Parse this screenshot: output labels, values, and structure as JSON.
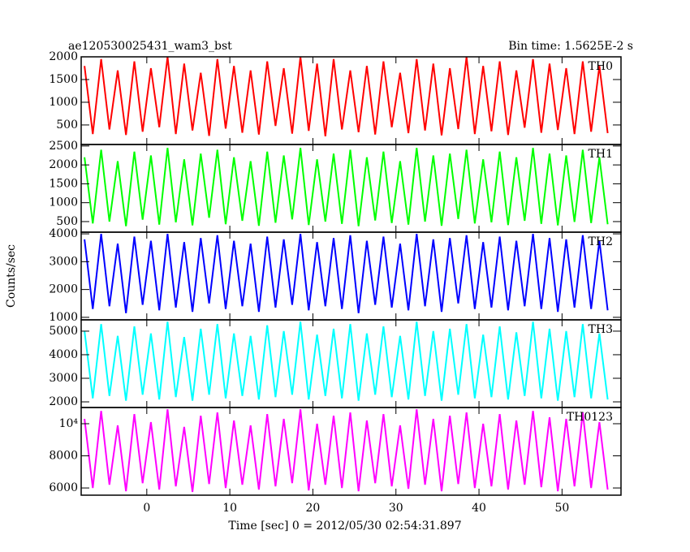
{
  "chart_data": {
    "type": "line",
    "title": "ae120530025431_wam3_bst",
    "subtitle": "Bin time: 1.5625E-2 s",
    "x_label": "Time [sec] 0 = 2012/05/30 02:54:31.897",
    "y_label": "Counts/sec",
    "xlim": [
      -7.9,
      57.1
    ],
    "xticks": [
      0,
      10,
      20,
      30,
      40,
      50
    ],
    "x": [
      -7.5,
      -6.5,
      -5.5,
      -4.5,
      -3.5,
      -2.5,
      -1.5,
      -0.5,
      0.5,
      1.5,
      2.5,
      3.5,
      4.5,
      5.5,
      6.5,
      7.5,
      8.5,
      9.5,
      10.5,
      11.5,
      12.5,
      13.5,
      14.5,
      15.5,
      16.5,
      17.5,
      18.5,
      19.5,
      20.5,
      21.5,
      22.5,
      23.5,
      24.5,
      25.5,
      26.5,
      27.5,
      28.5,
      29.5,
      30.5,
      31.5,
      32.5,
      33.5,
      34.5,
      35.5,
      36.5,
      37.5,
      38.5,
      39.5,
      40.5,
      41.5,
      42.5,
      43.5,
      44.5,
      45.5,
      46.5,
      47.5,
      48.5,
      49.5,
      50.5,
      51.5,
      52.5,
      53.5,
      54.5,
      55.5
    ],
    "series": [
      {
        "name": "TH0",
        "color": "#ff0000",
        "ylim": [
          70,
          2000
        ],
        "yticks": [
          500,
          1000,
          1500,
          2000
        ],
        "values": [
          1800,
          300,
          1950,
          400,
          1700,
          280,
          1900,
          350,
          1750,
          450,
          2000,
          300,
          1850,
          380,
          1650,
          260,
          1950,
          420,
          1800,
          330,
          1700,
          290,
          1900,
          480,
          1750,
          310,
          2000,
          370,
          1850,
          250,
          1950,
          400,
          1700,
          340,
          1800,
          290,
          1900,
          450,
          1650,
          320,
          1950,
          380,
          1850,
          270,
          1750,
          410,
          2000,
          300,
          1800,
          360,
          1900,
          280,
          1700,
          440,
          1950,
          330,
          1850,
          390,
          1750,
          300,
          1900,
          350,
          1800,
          320
        ]
      },
      {
        "name": "TH1",
        "color": "#00ff00",
        "ylim": [
          220,
          2540
        ],
        "yticks": [
          500,
          1000,
          1500,
          2000,
          2500
        ],
        "values": [
          2200,
          450,
          2400,
          500,
          2100,
          380,
          2350,
          550,
          2250,
          420,
          2450,
          480,
          2150,
          400,
          2300,
          600,
          2400,
          430,
          2200,
          520,
          2100,
          390,
          2350,
          470,
          2250,
          560,
          2450,
          410,
          2150,
          500,
          2300,
          440,
          2400,
          380,
          2200,
          530,
          2350,
          460,
          2100,
          420,
          2450,
          500,
          2250,
          390,
          2300,
          570,
          2400,
          450,
          2150,
          480,
          2350,
          410,
          2200,
          520,
          2450,
          440,
          2300,
          400,
          2250,
          490,
          2400,
          460,
          2200,
          430
        ]
      },
      {
        "name": "TH2",
        "color": "#0000ff",
        "ylim": [
          910,
          4060
        ],
        "yticks": [
          1000,
          2000,
          3000,
          4000
        ],
        "values": [
          3800,
          1300,
          4000,
          1400,
          3650,
          1150,
          3900,
          1450,
          3750,
          1250,
          4000,
          1350,
          3700,
          1200,
          3850,
          1500,
          3950,
          1300,
          3750,
          1400,
          3650,
          1200,
          3900,
          1350,
          3800,
          1450,
          4000,
          1250,
          3700,
          1400,
          3850,
          1300,
          3950,
          1150,
          3750,
          1450,
          3900,
          1350,
          3650,
          1250,
          4000,
          1400,
          3800,
          1200,
          3850,
          1500,
          3950,
          1300,
          3700,
          1350,
          3900,
          1250,
          3750,
          1400,
          4000,
          1300,
          3850,
          1200,
          3800,
          1350,
          3950,
          1300,
          3750,
          1250
        ]
      },
      {
        "name": "TH3",
        "color": "#00ffff",
        "ylim": [
          1760,
          5480
        ],
        "yticks": [
          2000,
          3000,
          4000,
          5000
        ],
        "values": [
          5000,
          2150,
          5300,
          2250,
          4800,
          2050,
          5200,
          2300,
          4900,
          2100,
          5400,
          2200,
          4750,
          2050,
          5100,
          2300,
          5300,
          2150,
          4900,
          2250,
          4800,
          2100,
          5250,
          2200,
          5000,
          2300,
          5400,
          2100,
          4850,
          2250,
          5100,
          2150,
          5300,
          2050,
          4900,
          2300,
          5200,
          2200,
          4800,
          2100,
          5400,
          2250,
          5000,
          2050,
          5100,
          2300,
          5300,
          2150,
          4850,
          2200,
          5200,
          2100,
          4950,
          2250,
          5400,
          2150,
          5100,
          2050,
          5000,
          2200,
          5300,
          2150,
          4900,
          2100
        ]
      },
      {
        "name": "TH0123",
        "color": "#ff00ff",
        "ylim": [
          5550,
          11010
        ],
        "yticks": [
          6000,
          8000,
          {
            "value": 10000,
            "label": "10⁴"
          }
        ],
        "values": [
          10300,
          6000,
          10800,
          6200,
          9900,
          5800,
          10600,
          6300,
          10100,
          5900,
          10900,
          6100,
          9800,
          5750,
          10500,
          6250,
          10700,
          6000,
          10200,
          6200,
          9900,
          5900,
          10600,
          6100,
          10300,
          6300,
          10900,
          5850,
          10000,
          6200,
          10500,
          6000,
          10700,
          5800,
          10200,
          6300,
          10600,
          6100,
          9900,
          5950,
          10900,
          6200,
          10300,
          5800,
          10500,
          6250,
          10700,
          6000,
          10000,
          6100,
          10600,
          5900,
          10200,
          6200,
          10800,
          6050,
          10400,
          5800,
          10300,
          6100,
          10700,
          6000,
          10100,
          5900
        ]
      }
    ]
  }
}
